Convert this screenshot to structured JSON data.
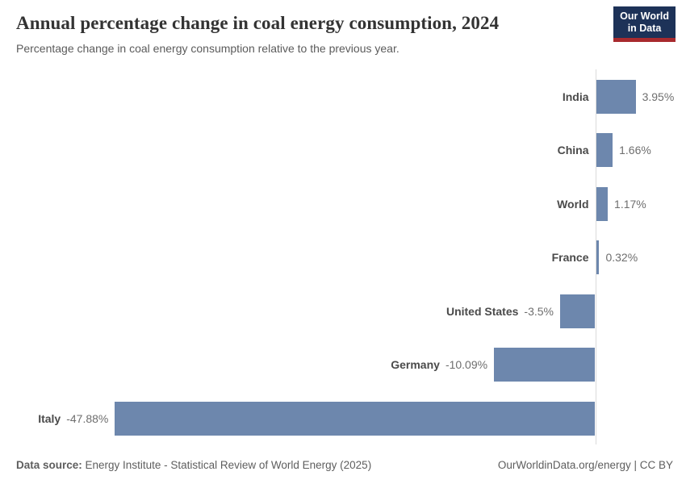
{
  "header": {
    "title": "Annual percentage change in coal energy consumption, 2024",
    "subtitle": "Percentage change in coal energy consumption relative to the previous year.",
    "logo": {
      "line1": "Our World",
      "line2": "in Data"
    }
  },
  "chart_data": {
    "type": "bar",
    "orientation": "horizontal",
    "title": "Annual percentage change in coal energy consumption, 2024",
    "categories": [
      "India",
      "China",
      "World",
      "France",
      "United States",
      "Germany",
      "Italy"
    ],
    "values": [
      3.95,
      1.66,
      1.17,
      0.32,
      -3.5,
      -10.09,
      -47.88
    ],
    "value_labels": [
      "3.95%",
      "1.66%",
      "1.17%",
      "0.32%",
      "-3.5%",
      "-10.09%",
      "-47.88%"
    ],
    "xlabel": "",
    "ylabel": "",
    "xlim": [
      -48,
      4.5
    ],
    "grid": false,
    "legend": false,
    "unit": "%",
    "bar_color": "#6d87ad",
    "zero_line_color": "#dadada",
    "country_label_color": "#4a4a4a",
    "value_label_color": "#6e6e6e"
  },
  "footer": {
    "source_label": "Data source:",
    "source_text": " Energy Institute - Statistical Review of World Energy (2025)",
    "right_text": "OurWorldinData.org/energy | CC BY"
  }
}
